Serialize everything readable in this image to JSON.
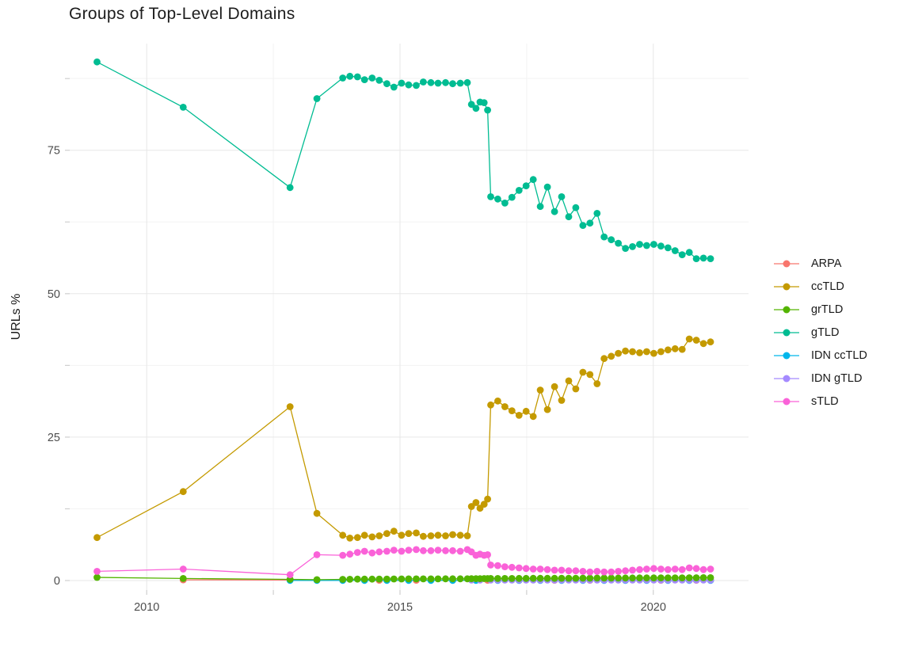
{
  "chart_data": {
    "type": "line",
    "title": "Groups of Top-Level Domains",
    "xlabel": "",
    "ylabel": "URLs %",
    "legend_position": "right",
    "grid": true,
    "xlim": [
      2008.48,
      2021.88
    ],
    "ylim": [
      -1.66,
      93.6
    ],
    "x_axis": {
      "ticks": [
        2010,
        2015,
        2020
      ],
      "minor": [
        2012.5,
        2017.5
      ]
    },
    "y_axis": {
      "ticks": [
        0,
        25,
        50,
        75
      ],
      "minor": [
        12.5,
        37.5,
        62.5,
        87.5
      ]
    },
    "colors": {
      "major_grid": "#e7e7e7",
      "minor_grid": "#f3f3f3",
      "tick_mark": "#cfcfcf",
      "axis_text": "#4d4d4d",
      "title_text": "#1c1c1c"
    },
    "series": [
      {
        "name": "ARPA",
        "color": "#F8766D",
        "x": [
          2010.72,
          2012.83,
          2013.36,
          2013.87,
          2014.59,
          2015.32,
          2016.04,
          2016.73,
          2017.35,
          2018.05,
          2018.75,
          2019.45,
          2020.15,
          2020.85,
          2021.13
        ],
        "y": [
          0.12,
          0.1,
          0.08,
          0.06,
          0.05,
          0.05,
          0.05,
          0.05,
          0.05,
          0.05,
          0.05,
          0.05,
          0.05,
          0.05,
          0.05
        ]
      },
      {
        "name": "ccTLD",
        "color": "#C49A00",
        "x": [
          2009.02,
          2010.72,
          2012.83,
          2013.36,
          2013.87,
          2014.01,
          2014.16,
          2014.3,
          2014.45,
          2014.59,
          2014.74,
          2014.88,
          2015.03,
          2015.17,
          2015.32,
          2015.46,
          2015.61,
          2015.75,
          2015.9,
          2016.04,
          2016.19,
          2016.33,
          2016.41,
          2016.5,
          2016.58,
          2016.66,
          2016.73,
          2016.79,
          2016.93,
          2017.07,
          2017.21,
          2017.35,
          2017.49,
          2017.63,
          2017.77,
          2017.91,
          2018.05,
          2018.19,
          2018.33,
          2018.47,
          2018.61,
          2018.75,
          2018.89,
          2019.03,
          2019.17,
          2019.31,
          2019.45,
          2019.59,
          2019.73,
          2019.87,
          2020.01,
          2020.15,
          2020.29,
          2020.43,
          2020.57,
          2020.71,
          2020.85,
          2020.99,
          2021.13
        ],
        "y": [
          7.5,
          15.5,
          30.3,
          11.7,
          7.9,
          7.4,
          7.5,
          7.9,
          7.6,
          7.8,
          8.2,
          8.6,
          7.9,
          8.2,
          8.3,
          7.7,
          7.8,
          7.9,
          7.8,
          8.0,
          7.9,
          7.8,
          12.9,
          13.6,
          12.6,
          13.3,
          14.2,
          30.6,
          31.3,
          30.3,
          29.6,
          28.8,
          29.5,
          28.6,
          33.2,
          29.8,
          33.8,
          31.4,
          34.8,
          33.4,
          36.3,
          35.9,
          34.3,
          38.7,
          39.1,
          39.6,
          40.0,
          39.9,
          39.7,
          39.9,
          39.6,
          39.9,
          40.2,
          40.4,
          40.3,
          42.1,
          41.9,
          41.3,
          41.6
        ]
      },
      {
        "name": "grTLD",
        "color": "#53B400",
        "x": [
          2009.02,
          2010.72,
          2012.83,
          2013.36,
          2013.87,
          2014.01,
          2014.16,
          2014.3,
          2014.45,
          2014.59,
          2014.74,
          2014.88,
          2015.03,
          2015.17,
          2015.32,
          2015.46,
          2015.61,
          2015.75,
          2015.9,
          2016.04,
          2016.19,
          2016.33,
          2016.41,
          2016.5,
          2016.58,
          2016.66,
          2016.73,
          2016.79,
          2016.93,
          2017.07,
          2017.21,
          2017.35,
          2017.49,
          2017.63,
          2017.77,
          2017.91,
          2018.05,
          2018.19,
          2018.33,
          2018.47,
          2018.61,
          2018.75,
          2018.89,
          2019.03,
          2019.17,
          2019.31,
          2019.45,
          2019.59,
          2019.73,
          2019.87,
          2020.01,
          2020.15,
          2020.29,
          2020.43,
          2020.57,
          2020.71,
          2020.85,
          2020.99,
          2021.13
        ],
        "y": [
          0.55,
          0.35,
          0.2,
          0.15,
          0.2,
          0.22,
          0.24,
          0.25,
          0.25,
          0.26,
          0.26,
          0.27,
          0.27,
          0.28,
          0.28,
          0.28,
          0.29,
          0.29,
          0.3,
          0.3,
          0.3,
          0.3,
          0.32,
          0.33,
          0.33,
          0.34,
          0.34,
          0.35,
          0.35,
          0.36,
          0.36,
          0.37,
          0.37,
          0.38,
          0.38,
          0.39,
          0.39,
          0.4,
          0.4,
          0.4,
          0.41,
          0.41,
          0.42,
          0.42,
          0.43,
          0.43,
          0.44,
          0.44,
          0.45,
          0.45,
          0.45,
          0.46,
          0.46,
          0.47,
          0.47,
          0.48,
          0.48,
          0.49,
          0.5
        ]
      },
      {
        "name": "gTLD",
        "color": "#00BC92",
        "x": [
          2009.02,
          2010.72,
          2012.83,
          2013.36,
          2013.87,
          2014.01,
          2014.16,
          2014.3,
          2014.45,
          2014.59,
          2014.74,
          2014.88,
          2015.03,
          2015.17,
          2015.32,
          2015.46,
          2015.61,
          2015.75,
          2015.9,
          2016.04,
          2016.19,
          2016.33,
          2016.41,
          2016.5,
          2016.58,
          2016.66,
          2016.73,
          2016.79,
          2016.93,
          2017.07,
          2017.21,
          2017.35,
          2017.49,
          2017.63,
          2017.77,
          2017.91,
          2018.05,
          2018.19,
          2018.33,
          2018.47,
          2018.61,
          2018.75,
          2018.89,
          2019.03,
          2019.17,
          2019.31,
          2019.45,
          2019.59,
          2019.73,
          2019.87,
          2020.01,
          2020.15,
          2020.29,
          2020.43,
          2020.57,
          2020.71,
          2020.85,
          2020.99,
          2021.13
        ],
        "y": [
          90.4,
          82.5,
          68.5,
          84.0,
          87.6,
          87.9,
          87.8,
          87.3,
          87.6,
          87.2,
          86.6,
          86.0,
          86.7,
          86.4,
          86.3,
          86.9,
          86.8,
          86.7,
          86.8,
          86.6,
          86.7,
          86.8,
          83.0,
          82.3,
          83.4,
          83.3,
          82.0,
          66.9,
          66.5,
          65.8,
          66.8,
          68.0,
          68.8,
          69.9,
          65.2,
          68.6,
          64.3,
          66.9,
          63.4,
          65.0,
          61.9,
          62.3,
          64.0,
          59.9,
          59.4,
          58.8,
          57.9,
          58.2,
          58.6,
          58.4,
          58.6,
          58.3,
          58.0,
          57.5,
          56.8,
          57.2,
          56.1,
          56.2,
          56.1
        ]
      },
      {
        "name": "IDN ccTLD",
        "color": "#00B6EB",
        "x": [
          2012.83,
          2013.36,
          2013.87,
          2014.3,
          2014.74,
          2015.17,
          2015.61,
          2016.04,
          2016.5,
          2016.93,
          2017.35,
          2017.77,
          2018.19,
          2018.61,
          2019.03,
          2019.45,
          2019.87,
          2020.29,
          2020.71,
          2021.13
        ],
        "y": [
          0.02,
          0.02,
          0.02,
          0.02,
          0.02,
          0.02,
          0.02,
          0.02,
          0.02,
          0.02,
          0.02,
          0.02,
          0.02,
          0.02,
          0.02,
          0.02,
          0.02,
          0.02,
          0.02,
          0.02
        ]
      },
      {
        "name": "IDN gTLD",
        "color": "#A58AFF",
        "x": [
          2016.41,
          2016.58,
          2016.79,
          2016.93,
          2017.07,
          2017.21,
          2017.35,
          2017.49,
          2017.63,
          2017.77,
          2017.91,
          2018.05,
          2018.19,
          2018.33,
          2018.47,
          2018.61,
          2018.75,
          2018.89,
          2019.03,
          2019.17,
          2019.31,
          2019.45,
          2019.59,
          2019.73,
          2019.87,
          2020.01,
          2020.15,
          2020.29,
          2020.43,
          2020.57,
          2020.71,
          2020.85,
          2020.99,
          2021.13
        ],
        "y": [
          0.08,
          0.08,
          0.08,
          0.08,
          0.08,
          0.08,
          0.08,
          0.08,
          0.08,
          0.08,
          0.08,
          0.08,
          0.08,
          0.08,
          0.08,
          0.08,
          0.08,
          0.08,
          0.08,
          0.08,
          0.08,
          0.08,
          0.08,
          0.08,
          0.08,
          0.08,
          0.08,
          0.08,
          0.08,
          0.08,
          0.08,
          0.08,
          0.08,
          0.08
        ]
      },
      {
        "name": "sTLD",
        "color": "#FA62D8",
        "x": [
          2009.02,
          2010.72,
          2012.83,
          2013.36,
          2013.87,
          2014.01,
          2014.16,
          2014.3,
          2014.45,
          2014.59,
          2014.74,
          2014.88,
          2015.03,
          2015.17,
          2015.32,
          2015.46,
          2015.61,
          2015.75,
          2015.9,
          2016.04,
          2016.19,
          2016.33,
          2016.41,
          2016.5,
          2016.58,
          2016.66,
          2016.73,
          2016.79,
          2016.93,
          2017.07,
          2017.21,
          2017.35,
          2017.49,
          2017.63,
          2017.77,
          2017.91,
          2018.05,
          2018.19,
          2018.33,
          2018.47,
          2018.61,
          2018.75,
          2018.89,
          2019.03,
          2019.17,
          2019.31,
          2019.45,
          2019.59,
          2019.73,
          2019.87,
          2020.01,
          2020.15,
          2020.29,
          2020.43,
          2020.57,
          2020.71,
          2020.85,
          2020.99,
          2021.13
        ],
        "y": [
          1.6,
          2.0,
          1.0,
          4.5,
          4.4,
          4.6,
          4.9,
          5.1,
          4.8,
          5.0,
          5.1,
          5.3,
          5.1,
          5.3,
          5.4,
          5.2,
          5.2,
          5.3,
          5.2,
          5.2,
          5.1,
          5.4,
          5.0,
          4.4,
          4.6,
          4.4,
          4.5,
          2.7,
          2.6,
          2.4,
          2.3,
          2.2,
          2.1,
          2.0,
          2.0,
          1.9,
          1.8,
          1.8,
          1.7,
          1.7,
          1.6,
          1.5,
          1.6,
          1.5,
          1.5,
          1.6,
          1.7,
          1.8,
          1.9,
          2.0,
          2.1,
          2.0,
          1.9,
          2.0,
          1.9,
          2.2,
          2.1,
          1.9,
          2.0
        ]
      }
    ]
  }
}
